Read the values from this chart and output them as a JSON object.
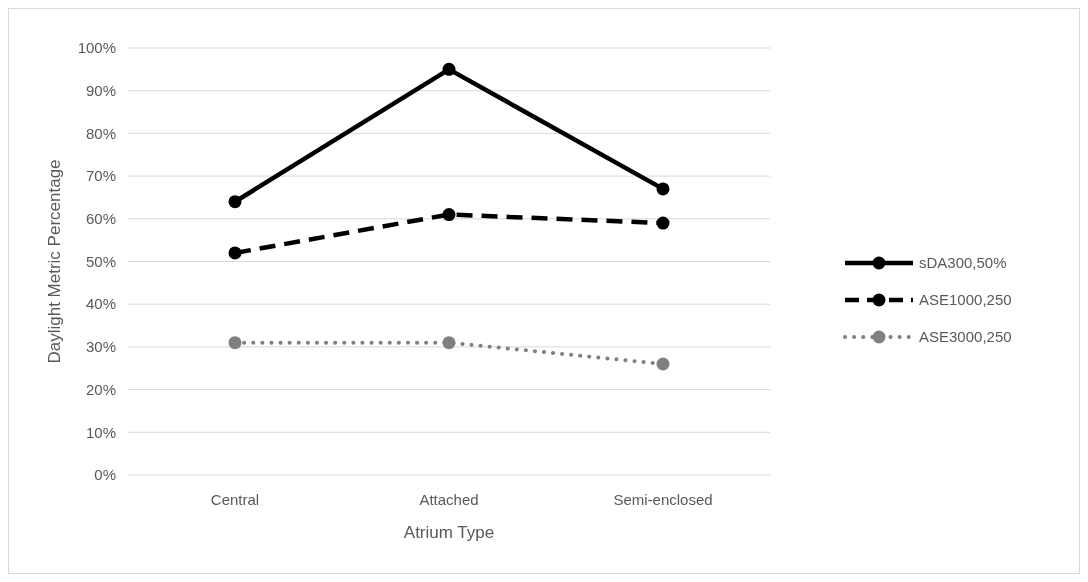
{
  "chart_data": {
    "type": "line",
    "xlabel": "Atrium Type",
    "ylabel": "Daylight Metric Percentage",
    "categories": [
      "Central",
      "Attached",
      "Semi-enclosed"
    ],
    "series": [
      {
        "name": "sDA300,50%",
        "color": "#000000",
        "line_style": "solid",
        "values": [
          64,
          95,
          67
        ]
      },
      {
        "name": "ASE1000,250",
        "color": "#000000",
        "line_style": "dashed",
        "values": [
          52,
          61,
          59
        ]
      },
      {
        "name": "ASE3000,250",
        "color": "#808080",
        "line_style": "dotted",
        "values": [
          31,
          31,
          26
        ]
      }
    ],
    "ylim": [
      0,
      100
    ],
    "yticks": [
      {
        "value": 0,
        "label": "0%"
      },
      {
        "value": 10,
        "label": "10%"
      },
      {
        "value": 20,
        "label": "20%"
      },
      {
        "value": 30,
        "label": "30%"
      },
      {
        "value": 40,
        "label": "40%"
      },
      {
        "value": 50,
        "label": "50%"
      },
      {
        "value": 60,
        "label": "60%"
      },
      {
        "value": 70,
        "label": "70%"
      },
      {
        "value": 80,
        "label": "80%"
      },
      {
        "value": 90,
        "label": "90%"
      },
      {
        "value": 100,
        "label": "100%"
      }
    ],
    "grid": "y",
    "legend": "right",
    "marker": "circle"
  }
}
